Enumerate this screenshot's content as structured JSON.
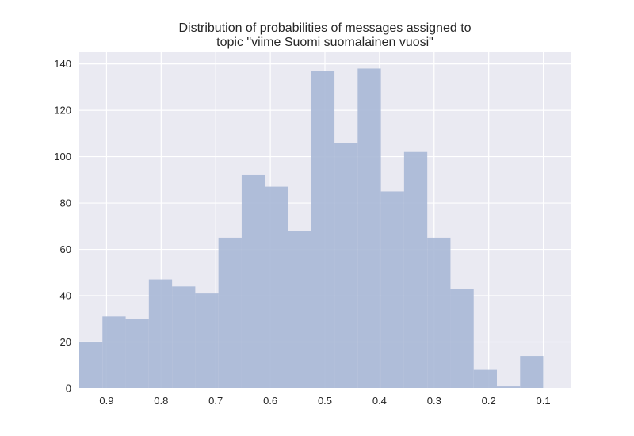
{
  "chart_data": {
    "type": "bar",
    "title": [
      "Distribution of probabilities of messages assigned to",
      "topic \"viime Suomi suomalainen vuosi\""
    ],
    "xlabel": "",
    "ylabel": "",
    "x_axis_reversed": true,
    "xlim": [
      0.95,
      0.05
    ],
    "ylim": [
      0,
      145
    ],
    "xticks": [
      0.9,
      0.8,
      0.7,
      0.6,
      0.5,
      0.4,
      0.3,
      0.2,
      0.1
    ],
    "xtick_labels": [
      "0.9",
      "0.8",
      "0.7",
      "0.6",
      "0.5",
      "0.4",
      "0.3",
      "0.2",
      "0.1"
    ],
    "yticks": [
      0,
      20,
      40,
      60,
      80,
      100,
      120,
      140
    ],
    "ytick_labels": [
      "0",
      "20",
      "40",
      "60",
      "80",
      "100",
      "120",
      "140"
    ],
    "grid": true,
    "legend": "none",
    "bin_edges": [
      0.95,
      0.9075,
      0.865,
      0.8225,
      0.78,
      0.7375,
      0.695,
      0.6525,
      0.61,
      0.5675,
      0.525,
      0.4825,
      0.44,
      0.3975,
      0.355,
      0.3125,
      0.27,
      0.2275,
      0.185,
      0.1425,
      0.1
    ],
    "values": [
      20,
      31,
      30,
      47,
      44,
      41,
      65,
      92,
      87,
      68,
      137,
      106,
      138,
      85,
      102,
      65,
      43,
      8,
      1,
      14
    ],
    "colors": {
      "bar": "#a9b8d6",
      "plot_background": "#eaeaf2",
      "grid": "#ffffff",
      "figure_background": "#ffffff"
    }
  }
}
